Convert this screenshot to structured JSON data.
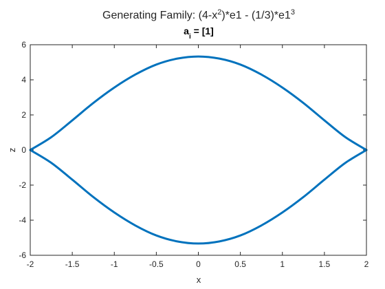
{
  "chart_data": {
    "type": "line",
    "title_main": "Generating Family: (4-x",
    "title_sup1": "2",
    "title_mid": ")*e1 - (1/3)*e1",
    "title_sup2": "3",
    "subtitle_base": "a",
    "subtitle_sub": "i",
    "subtitle_rest": " = [1]",
    "xlabel": "x",
    "ylabel": "z",
    "xlim": [
      -2,
      2
    ],
    "ylim": [
      -6,
      6
    ],
    "x_ticks": [
      -2,
      -1.5,
      -1,
      -0.5,
      0,
      0.5,
      1,
      1.5,
      2
    ],
    "x_tick_labels": [
      "-2",
      "-1.5",
      "-1",
      "-0.5",
      "0",
      "0.5",
      "1",
      "1.5",
      "2"
    ],
    "y_ticks": [
      -6,
      -4,
      -2,
      0,
      2,
      4,
      6
    ],
    "y_tick_labels": [
      "-6",
      "-4",
      "-2",
      "0",
      "2",
      "4",
      "6"
    ],
    "grid": false,
    "line_color": "#0072BD",
    "series": [
      {
        "x": [
          -2,
          -1.75,
          -1.5,
          -1.25,
          -1,
          -0.75,
          -0.5,
          -0.25,
          0,
          0.25,
          0.5,
          0.75,
          1,
          1.25,
          1.5,
          1.75,
          2
        ],
        "y": [
          0,
          0.73,
          1.69,
          2.68,
          3.56,
          4.3,
          4.87,
          5.21,
          5.33,
          5.21,
          4.87,
          4.3,
          3.56,
          2.68,
          1.69,
          0.73,
          0
        ]
      },
      {
        "x": [
          -2,
          -1.75,
          -1.5,
          -1.25,
          -1,
          -0.75,
          -0.5,
          -0.25,
          0,
          0.25,
          0.5,
          0.75,
          1,
          1.25,
          1.5,
          1.75,
          2
        ],
        "y": [
          0,
          -0.73,
          -1.69,
          -2.68,
          -3.56,
          -4.3,
          -4.87,
          -5.21,
          -5.33,
          -5.21,
          -4.87,
          -4.3,
          -3.56,
          -2.68,
          -1.69,
          -0.73,
          0
        ]
      }
    ]
  }
}
